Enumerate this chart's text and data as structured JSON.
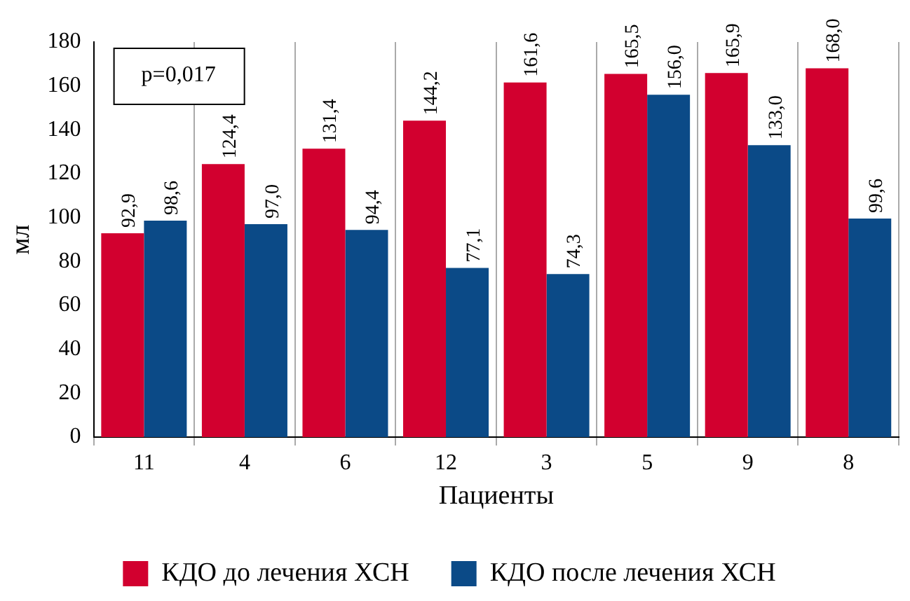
{
  "chart_data": {
    "type": "bar",
    "xlabel": "Пациенты",
    "ylabel": "мл",
    "categories": [
      "11",
      "4",
      "6",
      "12",
      "3",
      "5",
      "9",
      "8"
    ],
    "series": [
      {
        "name": "КДО до лечения ХСН",
        "color": "#d2002f",
        "values": [
          92.9,
          124.4,
          131.4,
          144.2,
          161.6,
          165.5,
          165.9,
          168.0
        ],
        "value_labels": [
          "92,9",
          "124,4",
          "131,4",
          "144,2",
          "161,6",
          "165,5",
          "165,9",
          "168,0"
        ]
      },
      {
        "name": "КДО после лечения ХСН",
        "color": "#0b4a87",
        "values": [
          98.6,
          97.0,
          94.4,
          77.1,
          74.3,
          156.0,
          133.0,
          99.6
        ],
        "value_labels": [
          "98,6",
          "97,0",
          "94,4",
          "77,1",
          "74,3",
          "156,0",
          "133,0",
          "99,6"
        ]
      }
    ],
    "ylim": [
      0,
      180
    ],
    "yticks": [
      0,
      20,
      40,
      60,
      80,
      100,
      120,
      140,
      160,
      180
    ],
    "grid": "x",
    "legend": "bottom",
    "annotations": [
      "p=0,017"
    ]
  }
}
